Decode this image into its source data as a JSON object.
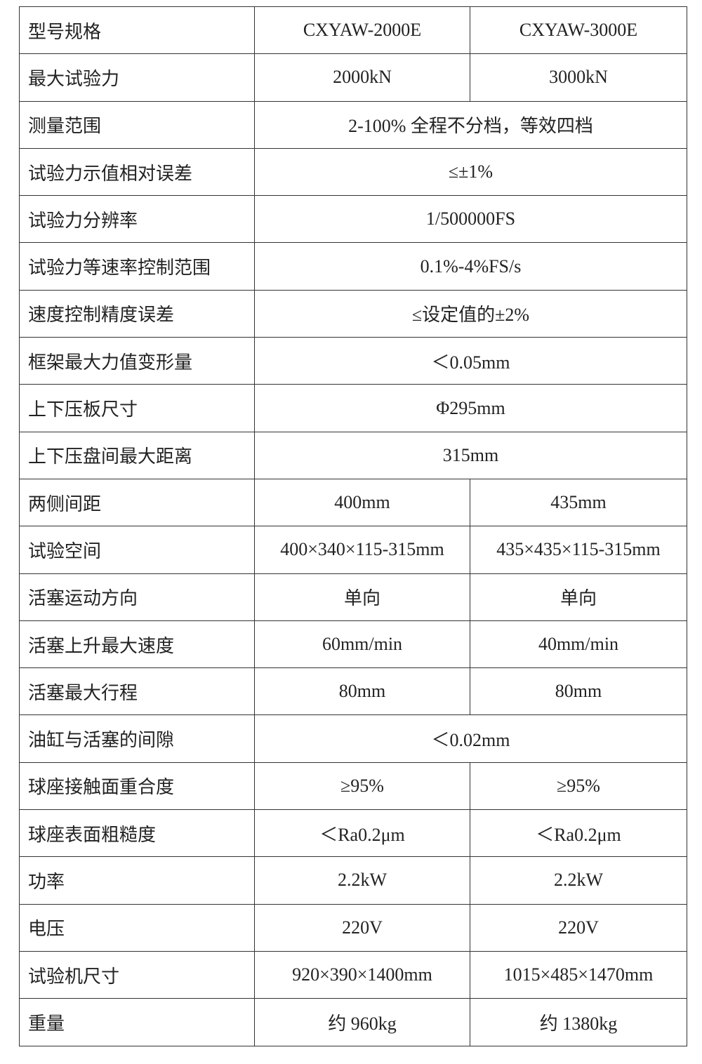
{
  "rows": [
    {
      "label": "型号规格",
      "values": [
        "CXYAW-2000E",
        "CXYAW-3000E"
      ]
    },
    {
      "label": "最大试验力",
      "values": [
        "2000kN",
        "3000kN"
      ]
    },
    {
      "label": "测量范围",
      "values": [
        "2-100% 全程不分档，等效四档"
      ]
    },
    {
      "label": "试验力示值相对误差",
      "values": [
        "≤±1%"
      ]
    },
    {
      "label": "试验力分辨率",
      "values": [
        "1/500000FS"
      ]
    },
    {
      "label": "试验力等速率控制范围",
      "values": [
        "0.1%-4%FS/s"
      ]
    },
    {
      "label": "速度控制精度误差",
      "values": [
        "≤设定值的±2%"
      ]
    },
    {
      "label": "框架最大力值变形量",
      "values": [
        "＜0.05mm"
      ]
    },
    {
      "label": "上下压板尺寸",
      "values": [
        "Φ295mm"
      ]
    },
    {
      "label": "上下压盘间最大距离",
      "values": [
        "315mm"
      ]
    },
    {
      "label": "两侧间距",
      "values": [
        "400mm",
        "435mm"
      ]
    },
    {
      "label": "试验空间",
      "values": [
        "400×340×115-315mm",
        "435×435×115-315mm"
      ]
    },
    {
      "label": "活塞运动方向",
      "values": [
        "单向",
        "单向"
      ]
    },
    {
      "label": "活塞上升最大速度",
      "values": [
        "60mm/min",
        "40mm/min"
      ]
    },
    {
      "label": "活塞最大行程",
      "values": [
        "80mm",
        "80mm"
      ]
    },
    {
      "label": "油缸与活塞的间隙",
      "values": [
        "＜0.02mm"
      ]
    },
    {
      "label": "球座接触面重合度",
      "values": [
        "≥95%",
        "≥95%"
      ]
    },
    {
      "label": "球座表面粗糙度",
      "values": [
        "＜Ra0.2μm",
        "＜Ra0.2μm"
      ]
    },
    {
      "label": "功率",
      "values": [
        "2.2kW",
        "2.2kW"
      ]
    },
    {
      "label": "电压",
      "values": [
        "220V",
        "220V"
      ]
    },
    {
      "label": "试验机尺寸",
      "values": [
        "920×390×1400mm",
        "1015×485×1470mm"
      ]
    },
    {
      "label": "重量",
      "values": [
        "约 960kg",
        "约 1380kg"
      ]
    }
  ]
}
